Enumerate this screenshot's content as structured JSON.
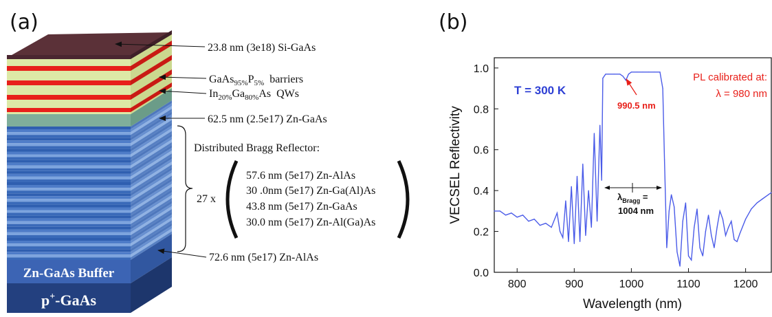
{
  "panel_a": {
    "label": "(a)",
    "layers": {
      "cap": "23.8 nm (3e18) Si-GaAs",
      "barriers_base": "GaAs",
      "barriers_sub1": "95%",
      "barriers_mid": "P",
      "barriers_sub2": "5%",
      "barriers_tail": "  barriers",
      "qw_base": "In",
      "qw_sub1": "20%",
      "qw_mid": "Ga",
      "qw_sub2": "80%",
      "qw_tail": "As  QWs",
      "spacer": "62.5 nm (2.5e17) Zn-GaAs",
      "dbr_title": "Distributed Bragg Reflector:",
      "dbr_repeat": "27 x",
      "dbr_layers": [
        "57.6 nm (5e17) Zn-AlAs",
        "30 .0nm (5e17) Zn-Ga(Al)As",
        "43.8 nm (5e17) Zn-GaAs",
        "30.0 nm (5e17) Zn-Al(Ga)As"
      ],
      "bottom_alas": "72.6 nm (5e17) Zn-AlAs",
      "buffer": "Zn-GaAs Buffer",
      "substrate_base": "p",
      "substrate_sup": "+",
      "substrate_tail": "-GaAs"
    }
  },
  "panel_b": {
    "label": "(b)",
    "temperature": "T = 300 K",
    "pl_line1": "PL calibrated at:",
    "pl_line2": "λ = 980 nm",
    "dip_label": "990.5 nm",
    "bragg_label": "λ",
    "bragg_sub": "Bragg",
    "bragg_eq": " =",
    "bragg_value": "1004 nm",
    "colors": {
      "curve": "#4a5be8",
      "annotation_red": "#e8201a",
      "temp_blue": "#2d3fd4"
    }
  },
  "chart_data": {
    "type": "line",
    "title": "",
    "xlabel": "Wavelength (nm)",
    "ylabel": "VECSEL Reflectivity",
    "xlim": [
      760,
      1245
    ],
    "ylim": [
      0,
      1.05
    ],
    "xticks": [
      800,
      900,
      1000,
      1100,
      1200
    ],
    "yticks": [
      0.0,
      0.2,
      0.4,
      0.6,
      0.8,
      1.0
    ],
    "grid": false,
    "legend": "none",
    "series": [
      {
        "x": [
          760,
          770,
          780,
          790,
          800,
          810,
          820,
          830,
          840,
          850,
          860,
          870,
          875,
          880,
          885,
          890,
          895,
          900,
          905,
          910,
          915,
          920,
          925,
          930,
          935,
          940,
          945,
          948,
          950,
          955,
          960,
          970,
          980,
          985,
          990.5,
          995,
          1000,
          1010,
          1020,
          1030,
          1040,
          1050,
          1055,
          1058,
          1062,
          1066,
          1070,
          1075,
          1080,
          1085,
          1090,
          1095,
          1100,
          1105,
          1110,
          1115,
          1120,
          1125,
          1130,
          1135,
          1140,
          1145,
          1150,
          1155,
          1160,
          1165,
          1170,
          1175,
          1180,
          1185,
          1190,
          1200,
          1210,
          1220,
          1230,
          1240,
          1245
        ],
        "values": [
          0.3,
          0.3,
          0.28,
          0.29,
          0.27,
          0.28,
          0.25,
          0.26,
          0.23,
          0.24,
          0.22,
          0.29,
          0.2,
          0.17,
          0.35,
          0.15,
          0.42,
          0.14,
          0.47,
          0.15,
          0.53,
          0.18,
          0.4,
          0.22,
          0.68,
          0.25,
          0.72,
          0.45,
          0.95,
          0.97,
          0.97,
          0.97,
          0.97,
          0.96,
          0.94,
          0.97,
          0.98,
          0.98,
          0.98,
          0.98,
          0.98,
          0.98,
          0.9,
          0.55,
          0.12,
          0.3,
          0.38,
          0.32,
          0.1,
          0.03,
          0.25,
          0.34,
          0.08,
          0.06,
          0.22,
          0.31,
          0.12,
          0.08,
          0.2,
          0.28,
          0.18,
          0.12,
          0.22,
          0.3,
          0.26,
          0.18,
          0.22,
          0.25,
          0.16,
          0.15,
          0.19,
          0.26,
          0.31,
          0.34,
          0.36,
          0.38,
          0.39
        ]
      }
    ],
    "annotations": [
      "990.5 nm",
      "λBragg = 1004 nm",
      "T = 300 K",
      "PL calibrated at:",
      "λ = 980 nm"
    ]
  }
}
